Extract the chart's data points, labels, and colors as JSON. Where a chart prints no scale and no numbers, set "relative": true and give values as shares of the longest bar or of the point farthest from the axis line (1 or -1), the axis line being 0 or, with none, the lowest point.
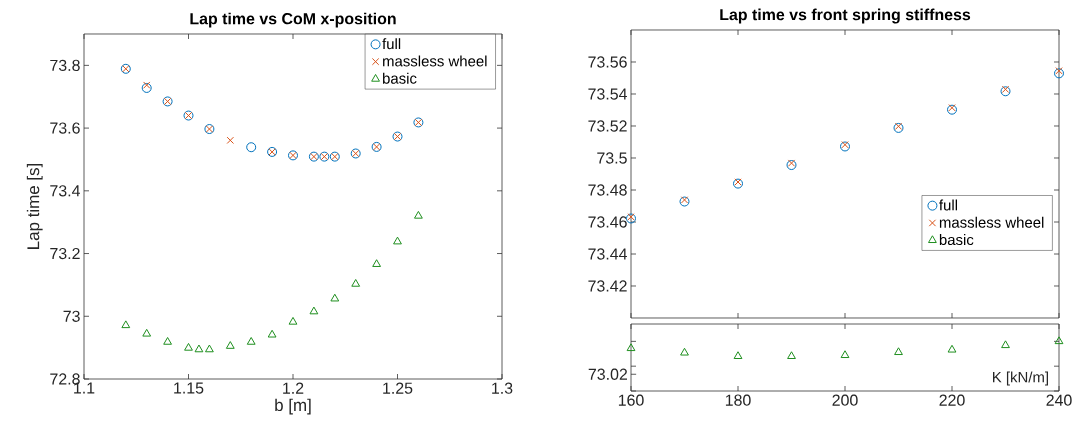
{
  "chart_data": [
    {
      "type": "scatter",
      "title": "Lap time vs CoM x-position",
      "xlabel": "b [m]",
      "ylabel": "Lap time [s]",
      "xlim": [
        1.1,
        1.3
      ],
      "xticks": [
        1.1,
        1.15,
        1.2,
        1.25,
        1.3
      ],
      "ylim": [
        72.8,
        73.9
      ],
      "yticks": [
        72.8,
        73,
        73.2,
        73.4,
        73.6,
        73.8
      ],
      "legend": "top right",
      "series": [
        {
          "name": "full",
          "color": "#0072bd",
          "marker": "circle",
          "x": [
            1.12,
            1.13,
            1.14,
            1.15,
            1.16,
            1.18,
            1.19,
            1.2,
            1.21,
            1.215,
            1.22,
            1.23,
            1.24,
            1.25,
            1.26
          ],
          "values": [
            73.789,
            73.728,
            73.685,
            73.64,
            73.597,
            73.539,
            73.524,
            73.513,
            73.509,
            73.509,
            73.509,
            73.519,
            73.54,
            73.573,
            73.618
          ]
        },
        {
          "name": "massless wheel",
          "color": "#d95319",
          "marker": "cross",
          "x": [
            1.12,
            1.13,
            1.14,
            1.15,
            1.16,
            1.17,
            1.19,
            1.2,
            1.21,
            1.215,
            1.22,
            1.23,
            1.24,
            1.25,
            1.26
          ],
          "values": [
            73.789,
            73.737,
            73.685,
            73.64,
            73.597,
            73.561,
            73.524,
            73.513,
            73.509,
            73.509,
            73.509,
            73.519,
            73.54,
            73.573,
            73.618
          ]
        },
        {
          "name": "basic",
          "color": "#1f8f1f",
          "marker": "triangle",
          "x": [
            1.12,
            1.13,
            1.14,
            1.15,
            1.155,
            1.16,
            1.17,
            1.18,
            1.19,
            1.2,
            1.21,
            1.22,
            1.23,
            1.24,
            1.25,
            1.26
          ],
          "values": [
            72.971,
            72.944,
            72.918,
            72.899,
            72.894,
            72.894,
            72.905,
            72.918,
            72.941,
            72.982,
            73.015,
            73.056,
            73.103,
            73.166,
            73.238,
            73.32
          ]
        }
      ]
    },
    {
      "type": "scatter",
      "title": "Lap time vs front spring stiffness",
      "xlim": [
        160,
        240
      ],
      "xticks": [
        160,
        180,
        200,
        220,
        240
      ],
      "ylim": [
        73.4,
        73.58
      ],
      "yticks": [
        73.42,
        73.44,
        73.46,
        73.48,
        73.5,
        73.52,
        73.54,
        73.56
      ],
      "tick_labels": "y",
      "legend": "right",
      "x": [
        160,
        170,
        180,
        190,
        200,
        210,
        220,
        230,
        240
      ],
      "series": [
        {
          "name": "full",
          "color": "#0072bd",
          "marker": "circle",
          "values": [
            73.4622,
            73.4728,
            73.484,
            73.4956,
            73.5072,
            73.5188,
            73.5302,
            73.5417,
            73.5529
          ]
        },
        {
          "name": "massless wheel",
          "color": "#d95319",
          "marker": "cross",
          "values": [
            73.4632,
            73.4738,
            73.485,
            73.4968,
            73.5083,
            73.5198,
            73.5314,
            73.5429,
            73.5545
          ]
        },
        {
          "name": "basic",
          "color": "#1f8f1f",
          "marker": "triangle",
          "values": [
            null,
            null,
            null,
            null,
            null,
            null,
            null,
            null,
            null
          ]
        }
      ]
    },
    {
      "type": "scatter",
      "xlabel": "K [kN/m]",
      "xlim": [
        160,
        240
      ],
      "xticks": [
        160,
        180,
        200,
        220,
        240
      ],
      "relative": true,
      "annotations": [
        "73.02"
      ],
      "x": [
        160,
        170,
        180,
        190,
        200,
        210,
        220,
        230,
        240
      ],
      "series": [
        {
          "color": "#1f8f1f",
          "marker": "triangle",
          "values": [
            0.86,
            0.77,
            0.7,
            0.7,
            0.72,
            0.78,
            0.83,
            0.92,
            1
          ]
        }
      ]
    }
  ]
}
